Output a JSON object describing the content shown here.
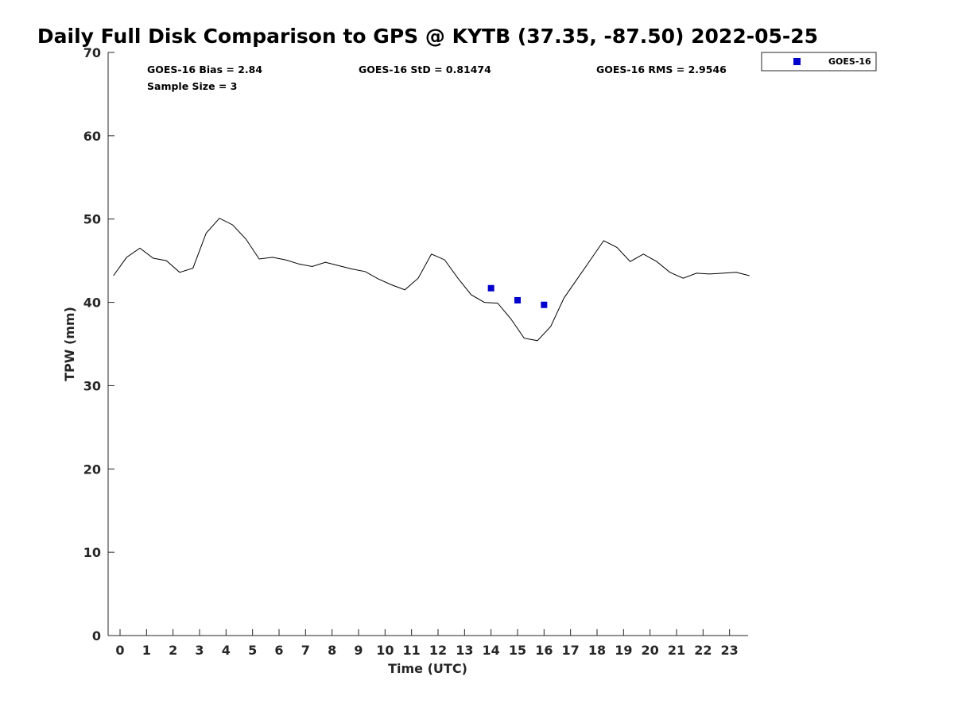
{
  "chart_data": {
    "type": "line",
    "title": "Daily Full Disk Comparison to GPS @ KYTB (37.35, -87.50) 2022-05-25",
    "xlabel": "Time (UTC)",
    "ylabel": "TPW (mm)",
    "xlim": [
      -0.45,
      23.7
    ],
    "ylim": [
      0,
      70
    ],
    "xticks": [
      0,
      1,
      2,
      3,
      4,
      5,
      6,
      7,
      8,
      9,
      10,
      11,
      12,
      13,
      14,
      15,
      16,
      17,
      18,
      19,
      20,
      21,
      22,
      23
    ],
    "yticks": [
      0,
      10,
      20,
      30,
      40,
      50,
      60,
      70
    ],
    "grid": false,
    "legend_position": "top-right",
    "series": [
      {
        "name": "",
        "style": "line",
        "color": "#000000",
        "x": [
          -0.25,
          0.25,
          0.75,
          1.25,
          1.75,
          2.25,
          2.75,
          3.25,
          3.75,
          4.25,
          4.75,
          5.25,
          5.75,
          6.25,
          6.75,
          7.25,
          7.75,
          8.25,
          8.75,
          9.25,
          9.75,
          10.25,
          10.75,
          11.25,
          11.75,
          12.25,
          12.75,
          13.25,
          13.75,
          14.25,
          14.75,
          15.25,
          15.75,
          16.25,
          16.75,
          17.25,
          17.75,
          18.25,
          18.75,
          19.25,
          19.75,
          20.25,
          20.75,
          21.25,
          21.75,
          22.25,
          22.75,
          23.25,
          23.75
        ],
        "y": [
          43.2,
          45.4,
          46.5,
          45.3,
          45.0,
          43.6,
          44.1,
          48.3,
          50.1,
          49.3,
          47.6,
          45.2,
          45.4,
          45.1,
          44.6,
          44.3,
          44.8,
          44.4,
          44.0,
          43.7,
          42.8,
          42.1,
          41.5,
          42.9,
          45.8,
          45.1,
          42.9,
          40.9,
          40.0,
          39.9,
          38.0,
          35.7,
          35.4,
          37.1,
          40.5,
          42.8,
          45.1,
          47.4,
          46.6,
          44.9,
          45.8,
          44.9,
          43.6,
          42.9,
          43.5,
          43.4,
          43.5,
          43.6,
          43.2
        ]
      },
      {
        "name": "GOES-16",
        "style": "marker",
        "color": "#0000cd",
        "x": [
          14,
          15,
          16
        ],
        "y": [
          41.7,
          40.25,
          39.7
        ]
      }
    ],
    "stats": {
      "bias": "GOES-16 Bias = 2.84",
      "std": "GOES-16 StD = 0.81474",
      "rms": "GOES-16 RMS = 2.9546",
      "sample": "Sample Size = 3"
    }
  }
}
